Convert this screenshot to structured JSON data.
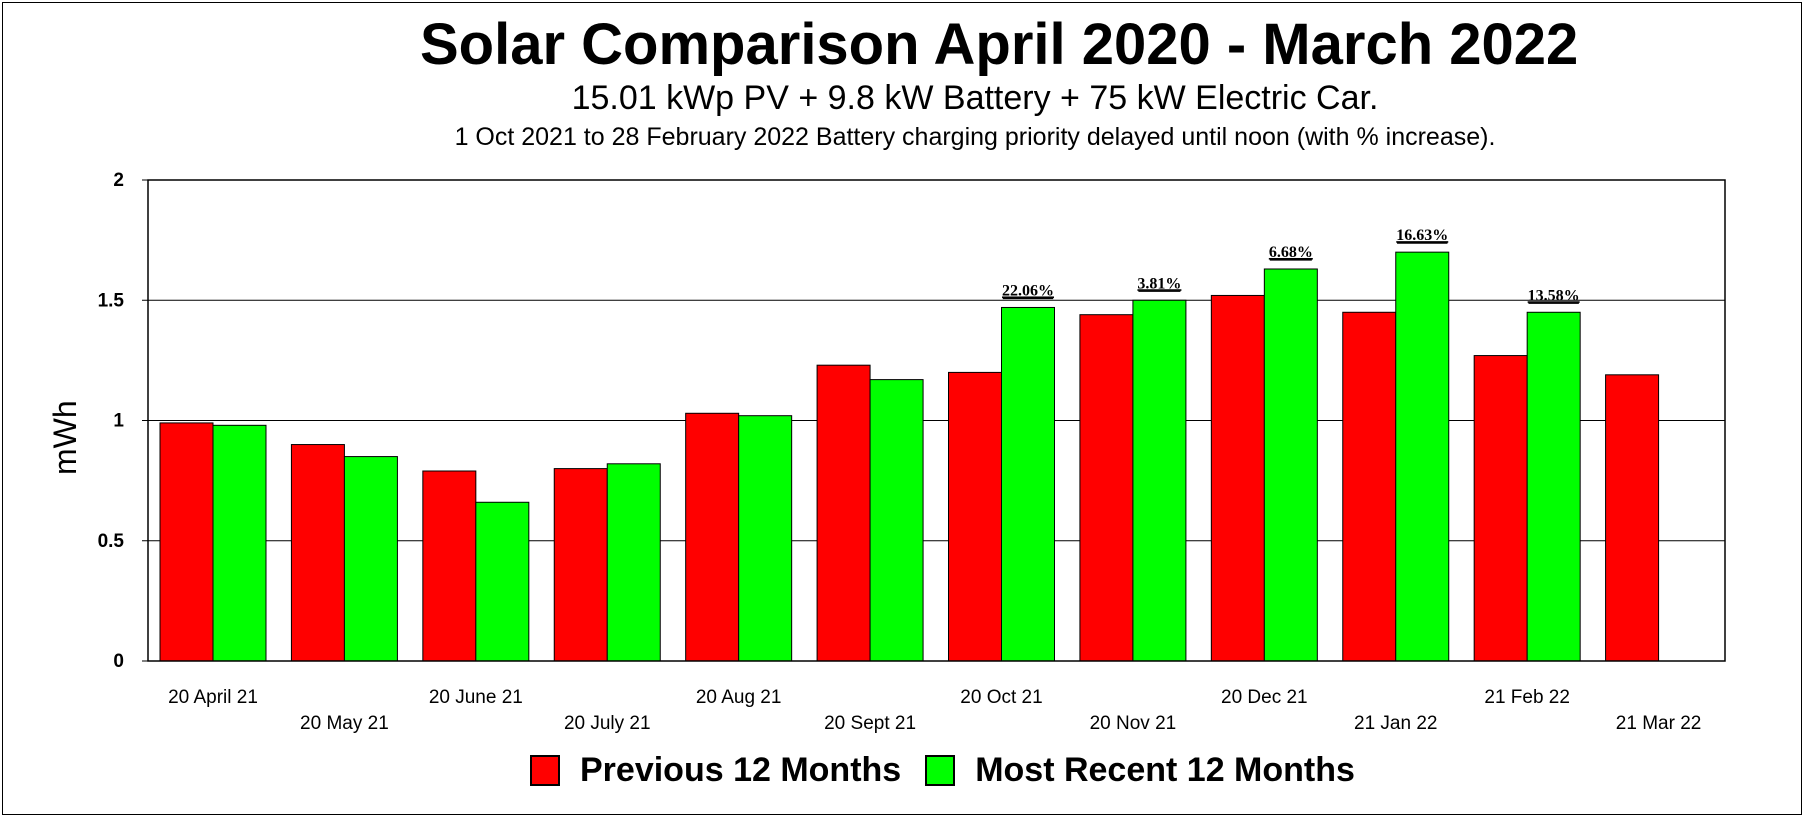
{
  "chart_data": {
    "type": "bar",
    "title": "Solar Comparison April 2020 - March 2022",
    "subtitle": "15.01 kWp PV + 9.8 kW Battery + 75 kW Electric Car.",
    "subtitle2": "1 Oct 2021 to 28 February 2022 Battery charging priority delayed until noon (with % increase).",
    "ylabel": "mWh",
    "xlabel": "",
    "ylim": [
      0,
      2
    ],
    "yticks": [
      "0",
      "0.5",
      "1",
      "1.5",
      "2"
    ],
    "ytick_values": [
      0,
      0.5,
      1,
      1.5,
      2
    ],
    "grid": "horizontal",
    "legend_position": "bottom",
    "categories": [
      "20 April 21",
      "20 May 21",
      "20 June 21",
      "20 July 21",
      "20 Aug 21",
      "20 Sept 21",
      "20 Oct 21",
      "20 Nov 21",
      "20 Dec 21",
      "21 Jan 22",
      "21 Feb 22",
      "21 Mar 22"
    ],
    "series": [
      {
        "name": "Previous 12 Months",
        "color": "#ff0000",
        "values": [
          0.99,
          0.9,
          0.79,
          0.8,
          1.03,
          1.23,
          1.2,
          1.44,
          1.52,
          1.45,
          1.27,
          1.19
        ]
      },
      {
        "name": "Most Recent 12 Months",
        "color": "#00ff00",
        "values": [
          0.98,
          0.85,
          0.66,
          0.82,
          1.02,
          1.17,
          1.47,
          1.5,
          1.63,
          1.7,
          1.45,
          null
        ]
      }
    ],
    "annotations": [
      {
        "category": "20 Oct 21",
        "text": "22.06%"
      },
      {
        "category": "20 Nov 21",
        "text": "3.81%"
      },
      {
        "category": "20 Dec 21",
        "text": "6.68%"
      },
      {
        "category": "21 Jan 22",
        "text": "16.63%"
      },
      {
        "category": "21 Feb 22",
        "text": "13.58%"
      }
    ]
  }
}
